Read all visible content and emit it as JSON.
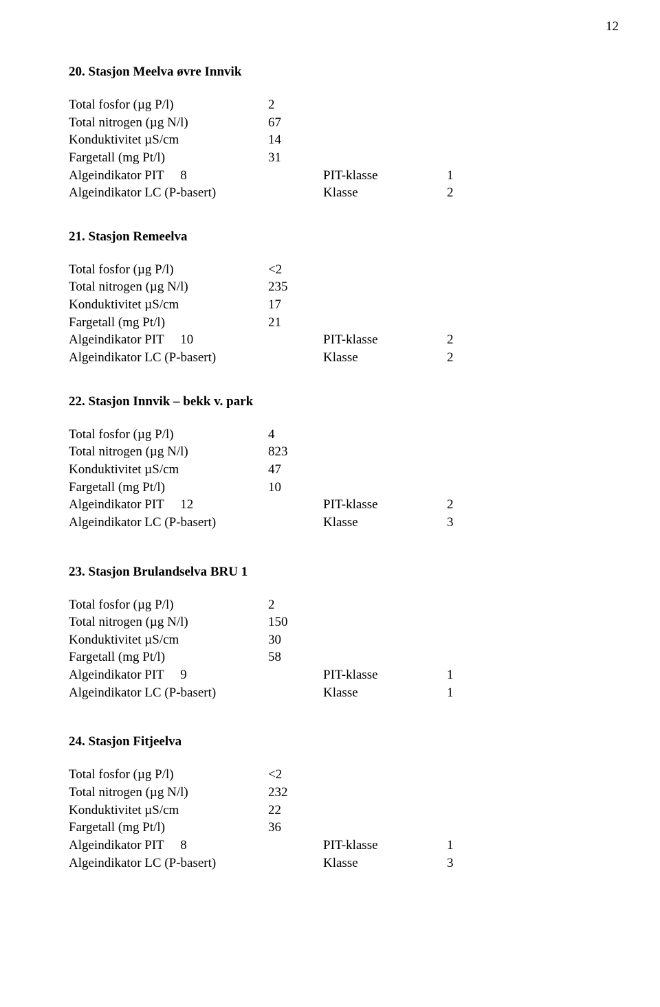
{
  "page_number": "12",
  "labels": {
    "tp": "Total fosfor (µg P/l)",
    "tn": "Total nitrogen (µg N/l)",
    "cond": "Konduktivitet µS/cm",
    "color": "Fargetall (mg Pt/l)",
    "pit_prefix": "Algeindikator PIT",
    "pit_klasse": "PIT-klasse",
    "lc": "Algeindikator LC (P-basert)",
    "klasse": "Klasse"
  },
  "sections": [
    {
      "title": "20. Stasjon  Meelva øvre Innvik",
      "tp": "2",
      "tn": "67",
      "cond": "14",
      "color": "31",
      "pit_n": "8",
      "pit_klasse": "1",
      "lc_klasse": "2"
    },
    {
      "title": "21. Stasjon  Remeelva",
      "tp": "<2",
      "tn": "235",
      "cond": "17",
      "color": "21",
      "pit_n": "10",
      "pit_klasse": "2",
      "lc_klasse": "2"
    },
    {
      "title": "22. Stasjon  Innvik – bekk v. park",
      "tp": "4",
      "tn": "823",
      "cond": "47",
      "color": "10",
      "pit_n": "12",
      "pit_klasse": "2",
      "lc_klasse": "3"
    },
    {
      "title": "23. Stasjon  Brulandselva BRU 1",
      "tp": "2",
      "tn": "150",
      "cond": "30",
      "color": "58",
      "pit_n": "9",
      "pit_klasse": "1",
      "lc_klasse": "1"
    },
    {
      "title": "24. Stasjon Fitjeelva",
      "tp": "<2",
      "tn": "232",
      "cond": "22",
      "color": "36",
      "pit_n": "8",
      "pit_klasse": "1",
      "lc_klasse": "3"
    }
  ]
}
